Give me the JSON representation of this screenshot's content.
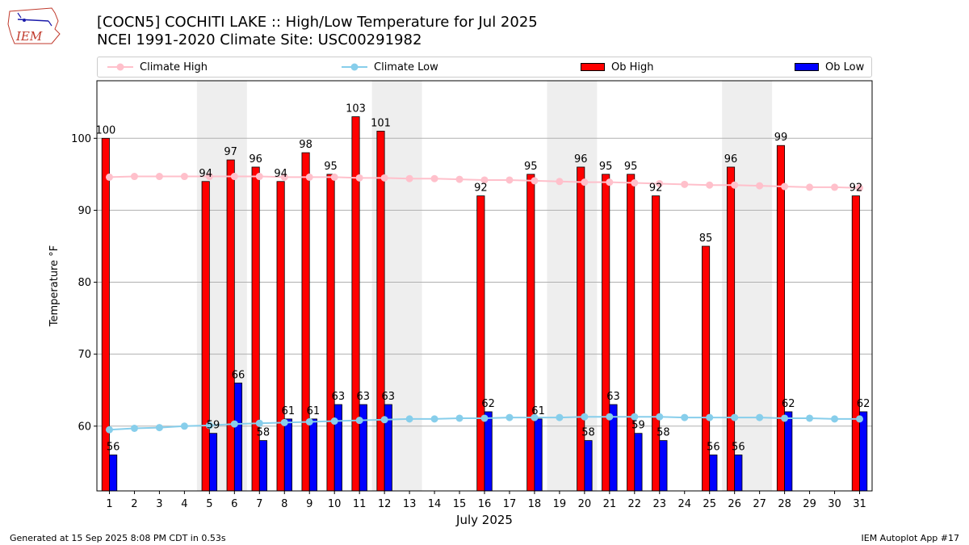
{
  "header": {
    "title_line1": "[COCN5] COCHITI LAKE :: High/Low Temperature for Jul 2025",
    "title_line2": "NCEI 1991-2020 Climate Site: USC00291982",
    "logo_text": "IEM"
  },
  "colors": {
    "ob_high": "#ff0000",
    "ob_low": "#0000ff",
    "climate_high": "#ffc0cb",
    "climate_low": "#87ceeb",
    "weekend_shade": "#eeeeee",
    "grid": "#b0b0b0"
  },
  "legend": {
    "climate_high": "Climate High",
    "climate_low": "Climate Low",
    "ob_high": "Ob High",
    "ob_low": "Ob Low"
  },
  "footer": {
    "generated": "Generated at 15 Sep 2025 8:08 PM CDT in 0.53s",
    "app": "IEM Autoplot App #17"
  },
  "chart_data": {
    "type": "bar",
    "title": "[COCN5] COCHITI LAKE :: High/Low Temperature for Jul 2025",
    "xlabel": "July 2025",
    "ylabel": "Temperature °F",
    "ylim": [
      51,
      108
    ],
    "yticks": [
      60,
      70,
      80,
      90,
      100
    ],
    "grid": true,
    "legend_position": "top",
    "days": [
      1,
      2,
      3,
      4,
      5,
      6,
      7,
      8,
      9,
      10,
      11,
      12,
      13,
      14,
      15,
      16,
      17,
      18,
      19,
      20,
      21,
      22,
      23,
      24,
      25,
      26,
      27,
      28,
      29,
      30,
      31
    ],
    "shaded_days": [
      [
        5,
        6
      ],
      [
        12,
        13
      ],
      [
        19,
        20
      ],
      [
        26,
        27
      ]
    ],
    "series": [
      {
        "name": "Ob High",
        "kind": "bar",
        "values": [
          100,
          null,
          null,
          null,
          94,
          97,
          96,
          94,
          98,
          95,
          103,
          101,
          null,
          null,
          null,
          92,
          null,
          95,
          null,
          96,
          95,
          95,
          92,
          null,
          85,
          96,
          null,
          99,
          null,
          null,
          92
        ]
      },
      {
        "name": "Ob Low",
        "kind": "bar",
        "values": [
          56,
          null,
          null,
          null,
          59,
          66,
          58,
          61,
          61,
          63,
          63,
          63,
          null,
          null,
          null,
          62,
          null,
          61,
          null,
          58,
          63,
          59,
          58,
          null,
          56,
          56,
          null,
          62,
          null,
          null,
          62
        ]
      },
      {
        "name": "Climate High",
        "kind": "line",
        "values": [
          94.6,
          94.7,
          94.7,
          94.7,
          94.7,
          94.7,
          94.7,
          94.6,
          94.6,
          94.6,
          94.5,
          94.5,
          94.4,
          94.4,
          94.3,
          94.2,
          94.2,
          94.1,
          94.0,
          93.9,
          93.9,
          93.8,
          93.7,
          93.6,
          93.5,
          93.5,
          93.4,
          93.3,
          93.2,
          93.2,
          93.1
        ]
      },
      {
        "name": "Climate Low",
        "kind": "line",
        "values": [
          59.5,
          59.7,
          59.8,
          60.0,
          60.1,
          60.3,
          60.4,
          60.5,
          60.6,
          60.7,
          60.8,
          60.9,
          61.0,
          61.0,
          61.1,
          61.1,
          61.2,
          61.2,
          61.2,
          61.3,
          61.3,
          61.3,
          61.3,
          61.2,
          61.2,
          61.2,
          61.2,
          61.1,
          61.1,
          61.0,
          61.0
        ]
      }
    ]
  }
}
